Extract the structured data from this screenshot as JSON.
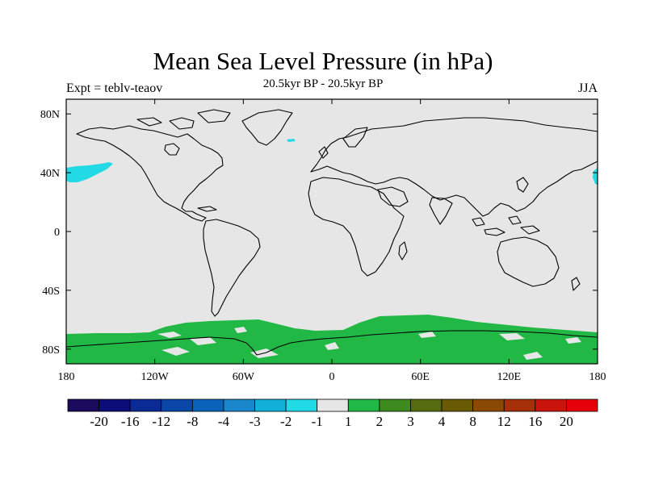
{
  "title": "Mean Sea Level Pressure (in hPa)",
  "subtitle": "20.5kyr BP - 20.5kyr BP",
  "left_label": "Expt = teblv-teaov",
  "right_label": "JJA",
  "colors": {
    "background_field": "#e6e6e6",
    "positive_anomaly": "#22b846",
    "negative_anomaly": "#22d9e6",
    "coastline": "#000000"
  },
  "chart_data": {
    "type": "heatmap",
    "title": "Mean Sea Level Pressure (in hPa)",
    "projection": "cylindrical equidistant",
    "x_range": [
      -180,
      180
    ],
    "y_range": [
      -90,
      90
    ],
    "x_ticks": [
      {
        "value": -180,
        "label": "180"
      },
      {
        "value": -120,
        "label": "120W"
      },
      {
        "value": -60,
        "label": "60W"
      },
      {
        "value": 0,
        "label": "0"
      },
      {
        "value": 60,
        "label": "60E"
      },
      {
        "value": 120,
        "label": "120E"
      },
      {
        "value": 180,
        "label": "180"
      }
    ],
    "y_ticks": [
      {
        "value": 80,
        "label": "80N"
      },
      {
        "value": 40,
        "label": "40N"
      },
      {
        "value": 0,
        "label": "0"
      },
      {
        "value": -40,
        "label": "40S"
      },
      {
        "value": -80,
        "label": "80S"
      }
    ],
    "colorbar": {
      "colors": [
        "#1a0a5e",
        "#0d0d7a",
        "#0a2a96",
        "#0a47a8",
        "#0a63b8",
        "#1a86cc",
        "#12b0d9",
        "#22d9e6",
        "#e6e6e6",
        "#22b846",
        "#3d8a1f",
        "#566b10",
        "#6b5a05",
        "#8a4a05",
        "#a5300a",
        "#c8140a",
        "#e6000a"
      ],
      "labels": [
        "-20",
        "-16",
        "-12",
        "-8",
        "-4",
        "-3",
        "-2",
        "-1",
        "1",
        "2",
        "3",
        "4",
        "8",
        "12",
        "16",
        "20"
      ]
    },
    "regions": [
      {
        "category": "1 to 2",
        "color": "#22b846",
        "location": "Southern Ocean / Antarctic margin, 60S-90S, all longitudes"
      },
      {
        "category": "-2 to -1",
        "color": "#22d9e6",
        "location": "North Pacific, ~35N-45N, 175W-150W"
      },
      {
        "category": "-2 to -1",
        "color": "#22d9e6",
        "location": "Western North Pacific edge, ~38N-42N, 178E-180"
      },
      {
        "category": "-2 to -1",
        "color": "#22d9e6",
        "location": "Greenland/Iceland area, ~70N, 30W"
      }
    ]
  }
}
